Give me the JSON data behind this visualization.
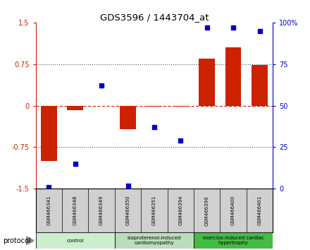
{
  "title": "GDS3596 / 1443704_at",
  "samples": [
    "GSM466341",
    "GSM466348",
    "GSM466349",
    "GSM466350",
    "GSM466351",
    "GSM466394",
    "GSM466399",
    "GSM466400",
    "GSM466401"
  ],
  "bar_values": [
    -1.0,
    -0.08,
    0.0,
    -0.42,
    -0.02,
    -0.02,
    0.85,
    1.05,
    0.73
  ],
  "scatter_values": [
    1.0,
    15.0,
    62.0,
    2.0,
    37.0,
    29.0,
    97.0,
    97.0,
    95.0
  ],
  "bar_color": "#CC2200",
  "scatter_color": "#0000CC",
  "ylim_left": [
    -1.5,
    1.5
  ],
  "ylim_right": [
    0,
    100
  ],
  "yticks_left": [
    -1.5,
    -0.75,
    0,
    0.75,
    1.5
  ],
  "yticks_right": [
    0,
    25,
    50,
    75,
    100
  ],
  "ytick_labels_left": [
    "-1.5",
    "-0.75",
    "0",
    "0.75",
    "1.5"
  ],
  "ytick_labels_right": [
    "0",
    "25",
    "50",
    "75",
    "100%"
  ],
  "groups": [
    {
      "label": "control",
      "start": 0,
      "end": 3,
      "color": "#cceecc"
    },
    {
      "label": "isoproterenol-induced\ncardiomyopathy",
      "start": 3,
      "end": 6,
      "color": "#bbddbb"
    },
    {
      "label": "exercise-induced cardiac\nhypertrophy",
      "start": 6,
      "end": 9,
      "color": "#44bb44"
    }
  ],
  "sample_box_color": "#d0d0d0",
  "protocol_label": "protocol",
  "background_color": "#ffffff"
}
